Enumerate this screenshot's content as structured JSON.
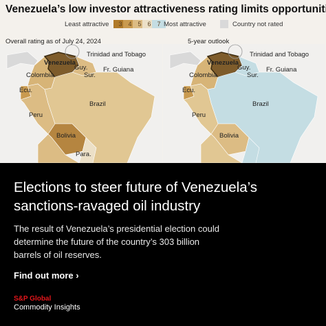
{
  "header": {
    "title": "Venezuela’s low investor attractiveness rating limits opportunities"
  },
  "legend": {
    "low_label": "Least attractive",
    "scale": [
      "3",
      "4",
      "5",
      "6",
      "7"
    ],
    "high_label": "Most attractive",
    "not_rated": "Country not rated"
  },
  "maps": [
    {
      "title": "Overall rating as of July 24, 2024",
      "labels": {
        "venezuela": "Venezuela",
        "trinidad": "Trinidad and Tobago",
        "guyana": "Guy.",
        "suriname": "Sur.",
        "fr_guiana": "Fr. Guiana",
        "colombia": "Colombia",
        "ecuador": "Ecu.",
        "peru": "Peru",
        "brazil": "Brazil",
        "bolivia": "Bolivia",
        "paraguay": "Para."
      }
    },
    {
      "title": "5-year outlook",
      "labels": {
        "venezuela": "Venezuela",
        "trinidad": "Trinidad and Tobago",
        "guyana": "Guy.",
        "suriname": "Sur.",
        "fr_guiana": "Fr. Guiana",
        "colombia": "Colombia",
        "ecuador": "Ecu.",
        "peru": "Peru",
        "brazil": "Brazil",
        "bolivia": "Bolivia"
      }
    }
  ],
  "card": {
    "headline": "Elections to steer future of Venezuela’s sanctions-ravaged oil industry",
    "body": "The result of Venezuela’s presidential election could determine the future of the country’s 303 billion barrels of oil reserves.",
    "cta": "Find out more",
    "brand": {
      "name": "S&P Global",
      "sub": "Commodity Insights"
    }
  }
}
